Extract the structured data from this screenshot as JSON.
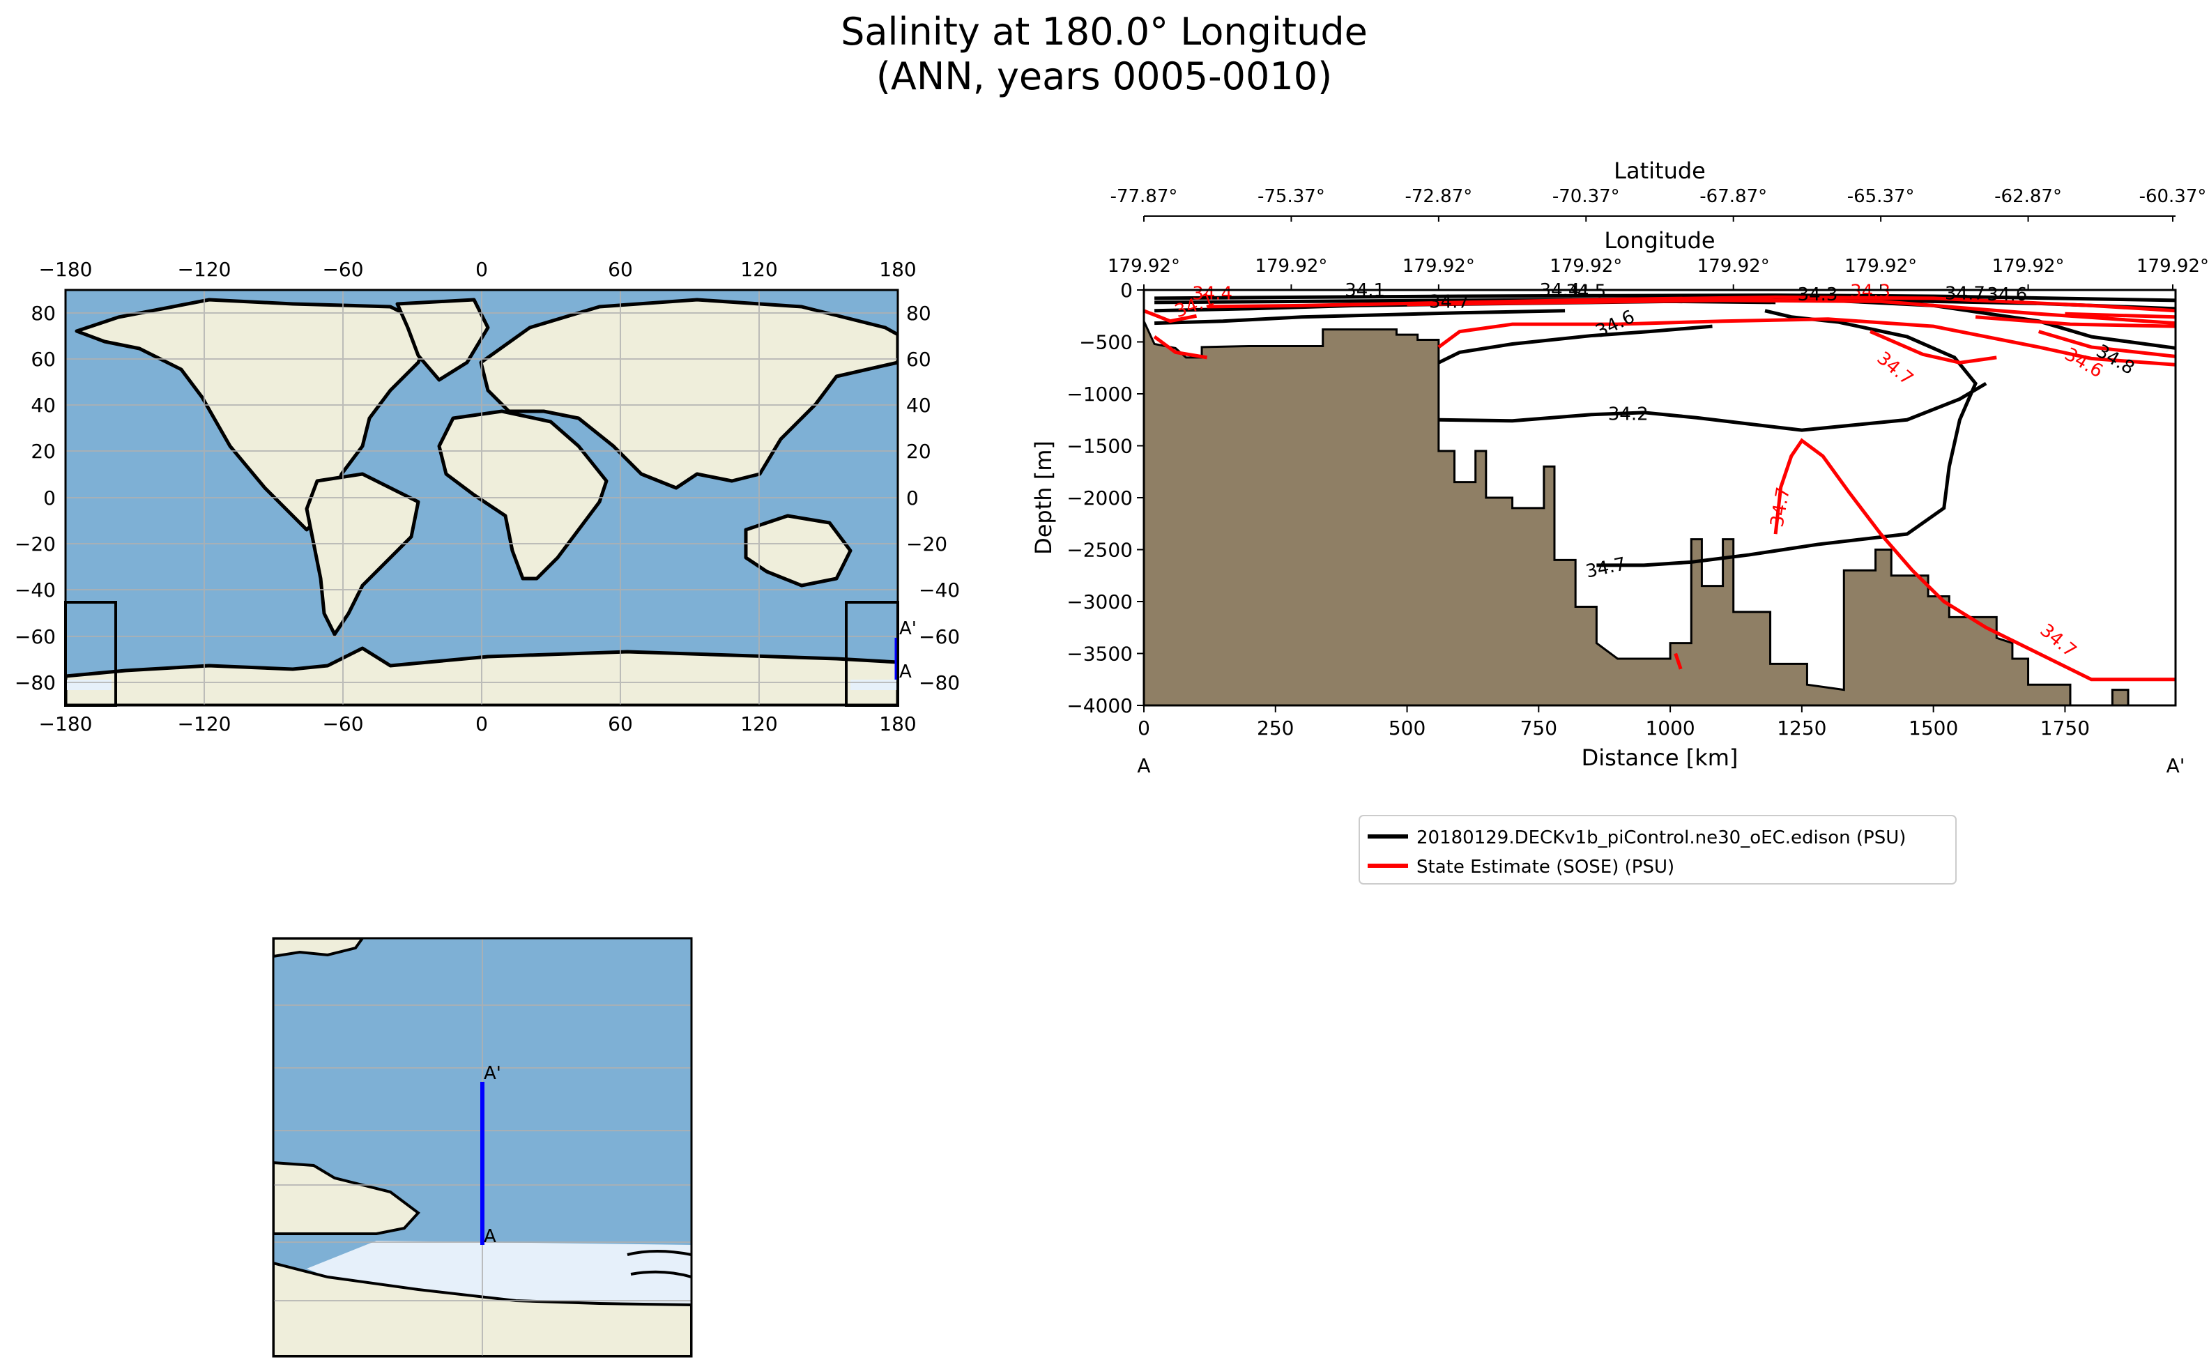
{
  "figure": {
    "title_line1": "Salinity at 180.0° Longitude",
    "title_line2": "(ANN, years 0005-0010)"
  },
  "colors": {
    "ocean": "#7eb0d5",
    "land": "#efeedb",
    "ice": "#e6f0fa",
    "bathymetry": "#8f7f65",
    "model_contour": "#000000",
    "obs_contour": "#ff0000",
    "transect": "#0000ff",
    "gridline": "#b0b0b0"
  },
  "world_map": {
    "lon_ticks": [
      "−180",
      "−120",
      "−60",
      "0",
      "60",
      "120",
      "180"
    ],
    "lat_ticks": [
      "80",
      "60",
      "40",
      "20",
      "0",
      "−20",
      "−40",
      "−60",
      "−80"
    ],
    "endpoint_start": "A",
    "endpoint_end": "A'",
    "transect_lon": 180.0,
    "transect_lat_range": [
      -77.87,
      -60.37
    ]
  },
  "inset_map": {
    "endpoint_start": "A",
    "endpoint_end": "A'"
  },
  "chart_data": {
    "type": "contour",
    "title": "Salinity at 180.0° Longitude",
    "xlabel": "Distance [km]",
    "ylabel": "Depth [m]",
    "xlim": [
      0,
      1960
    ],
    "ylim": [
      -4000,
      0
    ],
    "x_ticks": [
      0,
      250,
      500,
      750,
      1000,
      1250,
      1500,
      1750
    ],
    "y_ticks": [
      0,
      -500,
      -1000,
      -1500,
      -2000,
      -2500,
      -3000,
      -3500,
      -4000
    ],
    "top_axis_1_label": "Latitude",
    "top_axis_1_ticks": [
      "-77.87°",
      "-75.37°",
      "-72.87°",
      "-70.37°",
      "-67.87°",
      "-65.37°",
      "-62.87°",
      "-60.37°"
    ],
    "top_axis_2_label": "Longitude",
    "top_axis_2_ticks": [
      "179.92°",
      "179.92°",
      "179.92°",
      "179.92°",
      "179.92°",
      "179.92°",
      "179.92°",
      "179.92°"
    ],
    "endpoint_start": "A",
    "endpoint_end": "A'",
    "legend_position": "below",
    "series": [
      {
        "name": "20180129.DECKv1b_piControl.ne30_oEC.edison (PSU)",
        "color": "#000000",
        "contour_labels": [
          "34.1",
          "34.7",
          "34.4",
          "34.5",
          "34.6",
          "34.2",
          "34.3",
          "34.7",
          "34.8",
          "34.6",
          "34.7"
        ]
      },
      {
        "name": "State Estimate (SOSE) (PSU)",
        "color": "#ff0000",
        "contour_labels": [
          "34.4",
          "34.1",
          "34.3",
          "34.7",
          "34.6",
          "34.7",
          "34.7"
        ]
      }
    ]
  }
}
